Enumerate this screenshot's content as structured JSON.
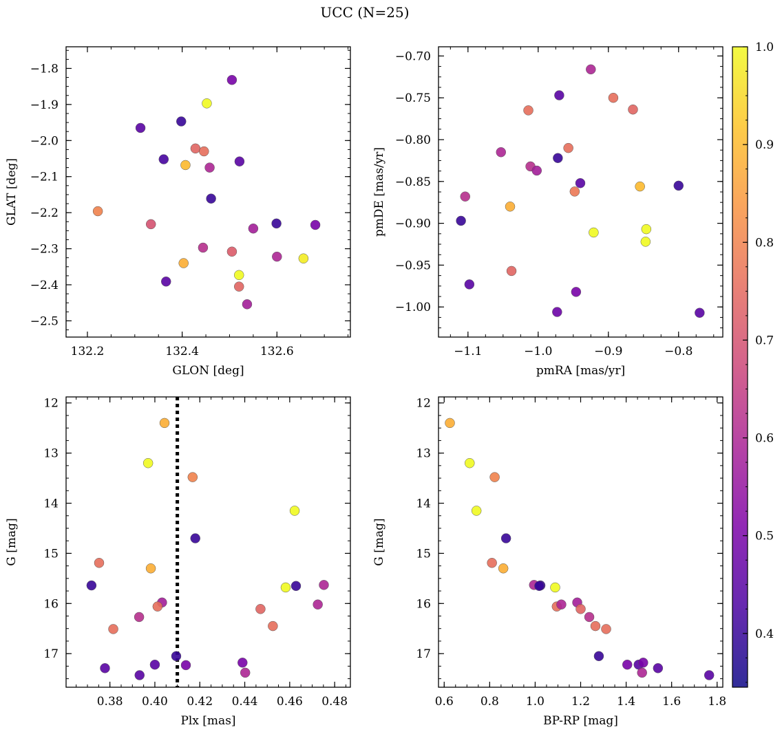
{
  "figure": {
    "title": "UCC (N=25)"
  },
  "colorbar": {
    "colormap": "plasma",
    "range": [
      0.345,
      1.0
    ],
    "ticks": [
      "0.4",
      "0.5",
      "0.6",
      "0.7",
      "0.8",
      "0.9",
      "1.0"
    ]
  },
  "chart_data": [
    {
      "type": "scatter",
      "xlabel": "GLON [deg]",
      "ylabel": "GLAT [deg]",
      "xlim": [
        132.155,
        132.755
      ],
      "ylim": [
        -2.545,
        -1.74
      ],
      "x_ticks": [
        "132.2",
        "132.4",
        "132.6"
      ],
      "y_ticks": [
        "−1.8",
        "−1.9",
        "−2.0",
        "−2.1",
        "−2.2",
        "−2.3",
        "−2.4",
        "−2.5"
      ],
      "points": [
        {
          "x": 132.505,
          "y": -1.832,
          "c": 0.5
        },
        {
          "x": 132.452,
          "y": -1.897,
          "c": 1.0
        },
        {
          "x": 132.312,
          "y": -1.965,
          "c": 0.45
        },
        {
          "x": 132.398,
          "y": -1.947,
          "c": 0.4
        },
        {
          "x": 132.361,
          "y": -2.052,
          "c": 0.42
        },
        {
          "x": 132.428,
          "y": -2.022,
          "c": 0.74
        },
        {
          "x": 132.446,
          "y": -2.03,
          "c": 0.76
        },
        {
          "x": 132.407,
          "y": -2.068,
          "c": 0.9
        },
        {
          "x": 132.458,
          "y": -2.075,
          "c": 0.6
        },
        {
          "x": 132.521,
          "y": -2.058,
          "c": 0.45
        },
        {
          "x": 132.461,
          "y": -2.161,
          "c": 0.4
        },
        {
          "x": 132.222,
          "y": -2.196,
          "c": 0.8
        },
        {
          "x": 132.334,
          "y": -2.232,
          "c": 0.7
        },
        {
          "x": 132.599,
          "y": -2.23,
          "c": 0.4
        },
        {
          "x": 132.55,
          "y": -2.244,
          "c": 0.58
        },
        {
          "x": 132.681,
          "y": -2.234,
          "c": 0.5
        },
        {
          "x": 132.444,
          "y": -2.297,
          "c": 0.62
        },
        {
          "x": 132.505,
          "y": -2.308,
          "c": 0.72
        },
        {
          "x": 132.6,
          "y": -2.322,
          "c": 0.6
        },
        {
          "x": 132.656,
          "y": -2.327,
          "c": 0.98
        },
        {
          "x": 132.403,
          "y": -2.34,
          "c": 0.88
        },
        {
          "x": 132.52,
          "y": -2.373,
          "c": 1.0
        },
        {
          "x": 132.52,
          "y": -2.405,
          "c": 0.74
        },
        {
          "x": 132.366,
          "y": -2.391,
          "c": 0.45
        },
        {
          "x": 132.537,
          "y": -2.454,
          "c": 0.58
        }
      ]
    },
    {
      "type": "scatter",
      "xlabel": "pmRA [mas/yr]",
      "ylabel": "pmDE [mas/yr]",
      "xlim": [
        -1.142,
        -0.737
      ],
      "ylim": [
        -1.036,
        -0.689
      ],
      "x_ticks": [
        "−1.1",
        "−1.0",
        "−0.9",
        "−0.8"
      ],
      "y_ticks": [
        "−0.70",
        "−0.75",
        "−0.80",
        "−0.85",
        "−0.90",
        "−0.95",
        "−1.00"
      ],
      "points": [
        {
          "x": -0.925,
          "y": -0.716,
          "c": 0.6
        },
        {
          "x": -0.97,
          "y": -0.747,
          "c": 0.45
        },
        {
          "x": -0.893,
          "y": -0.75,
          "c": 0.76
        },
        {
          "x": -1.014,
          "y": -0.765,
          "c": 0.76
        },
        {
          "x": -0.865,
          "y": -0.764,
          "c": 0.74
        },
        {
          "x": -0.957,
          "y": -0.81,
          "c": 0.76
        },
        {
          "x": -1.053,
          "y": -0.815,
          "c": 0.6
        },
        {
          "x": -0.972,
          "y": -0.822,
          "c": 0.4
        },
        {
          "x": -1.011,
          "y": -0.832,
          "c": 0.62
        },
        {
          "x": -1.002,
          "y": -0.837,
          "c": 0.58
        },
        {
          "x": -0.94,
          "y": -0.852,
          "c": 0.45
        },
        {
          "x": -0.855,
          "y": -0.856,
          "c": 0.9
        },
        {
          "x": -0.8,
          "y": -0.855,
          "c": 0.4
        },
        {
          "x": -0.948,
          "y": -0.862,
          "c": 0.78
        },
        {
          "x": -1.104,
          "y": -0.868,
          "c": 0.62
        },
        {
          "x": -1.04,
          "y": -0.88,
          "c": 0.88
        },
        {
          "x": -1.11,
          "y": -0.897,
          "c": 0.4
        },
        {
          "x": -0.846,
          "y": -0.907,
          "c": 1.0
        },
        {
          "x": -0.921,
          "y": -0.911,
          "c": 1.0
        },
        {
          "x": -0.847,
          "y": -0.922,
          "c": 1.0
        },
        {
          "x": -1.038,
          "y": -0.957,
          "c": 0.74
        },
        {
          "x": -1.098,
          "y": -0.973,
          "c": 0.45
        },
        {
          "x": -0.946,
          "y": -0.982,
          "c": 0.5
        },
        {
          "x": -0.973,
          "y": -1.006,
          "c": 0.48
        },
        {
          "x": -0.77,
          "y": -1.007,
          "c": 0.45
        }
      ]
    },
    {
      "type": "scatter",
      "xlabel": "Plx [mas]",
      "ylabel": "G [mag]",
      "xlim": [
        0.3605,
        0.487
      ],
      "ylim": [
        17.67,
        11.88
      ],
      "y_inverted": true,
      "x_ticks": [
        "0.38",
        "0.40",
        "0.42",
        "0.44",
        "0.46",
        "0.48"
      ],
      "y_ticks": [
        "12",
        "13",
        "14",
        "15",
        "16",
        "17"
      ],
      "vline": {
        "x": 0.41,
        "style": "dotted"
      },
      "points": [
        {
          "x": 0.4043,
          "y": 12.4,
          "c": 0.88
        },
        {
          "x": 0.397,
          "y": 13.2,
          "c": 1.0
        },
        {
          "x": 0.4168,
          "y": 13.48,
          "c": 0.8
        },
        {
          "x": 0.4622,
          "y": 14.15,
          "c": 1.0
        },
        {
          "x": 0.418,
          "y": 14.7,
          "c": 0.4
        },
        {
          "x": 0.3752,
          "y": 15.19,
          "c": 0.76
        },
        {
          "x": 0.3982,
          "y": 15.3,
          "c": 0.88
        },
        {
          "x": 0.3718,
          "y": 15.64,
          "c": 0.4
        },
        {
          "x": 0.4582,
          "y": 15.68,
          "c": 1.0
        },
        {
          "x": 0.4628,
          "y": 15.65,
          "c": 0.4
        },
        {
          "x": 0.4752,
          "y": 15.63,
          "c": 0.6
        },
        {
          "x": 0.4032,
          "y": 15.98,
          "c": 0.58
        },
        {
          "x": 0.4012,
          "y": 16.06,
          "c": 0.76
        },
        {
          "x": 0.4725,
          "y": 16.02,
          "c": 0.6
        },
        {
          "x": 0.447,
          "y": 16.11,
          "c": 0.74
        },
        {
          "x": 0.393,
          "y": 16.27,
          "c": 0.62
        },
        {
          "x": 0.4525,
          "y": 16.45,
          "c": 0.76
        },
        {
          "x": 0.3815,
          "y": 16.51,
          "c": 0.76
        },
        {
          "x": 0.4095,
          "y": 17.05,
          "c": 0.4
        },
        {
          "x": 0.4,
          "y": 17.22,
          "c": 0.45
        },
        {
          "x": 0.4138,
          "y": 17.23,
          "c": 0.5
        },
        {
          "x": 0.439,
          "y": 17.18,
          "c": 0.5
        },
        {
          "x": 0.3778,
          "y": 17.29,
          "c": 0.45
        },
        {
          "x": 0.4402,
          "y": 17.38,
          "c": 0.6
        },
        {
          "x": 0.3932,
          "y": 17.43,
          "c": 0.45
        }
      ]
    },
    {
      "type": "scatter",
      "xlabel": "BP-RP [mag]",
      "ylabel": "G [mag]",
      "xlim": [
        0.575,
        1.825
      ],
      "ylim": [
        17.67,
        11.88
      ],
      "y_inverted": true,
      "x_ticks": [
        "0.6",
        "0.8",
        "1.0",
        "1.2",
        "1.4",
        "1.6",
        "1.8"
      ],
      "y_ticks": [
        "12",
        "13",
        "14",
        "15",
        "16",
        "17"
      ],
      "points": [
        {
          "x": 0.625,
          "y": 12.4,
          "c": 0.88
        },
        {
          "x": 0.712,
          "y": 13.2,
          "c": 1.0
        },
        {
          "x": 0.822,
          "y": 13.48,
          "c": 0.8
        },
        {
          "x": 0.742,
          "y": 14.15,
          "c": 1.0
        },
        {
          "x": 0.872,
          "y": 14.7,
          "c": 0.4
        },
        {
          "x": 0.81,
          "y": 15.19,
          "c": 0.76
        },
        {
          "x": 0.86,
          "y": 15.3,
          "c": 0.88
        },
        {
          "x": 0.995,
          "y": 15.63,
          "c": 0.6
        },
        {
          "x": 1.023,
          "y": 15.64,
          "c": 0.4
        },
        {
          "x": 1.088,
          "y": 15.68,
          "c": 1.0
        },
        {
          "x": 1.018,
          "y": 15.65,
          "c": 0.4
        },
        {
          "x": 1.095,
          "y": 16.06,
          "c": 0.76
        },
        {
          "x": 1.115,
          "y": 16.02,
          "c": 0.6
        },
        {
          "x": 1.185,
          "y": 15.98,
          "c": 0.58
        },
        {
          "x": 1.2,
          "y": 16.11,
          "c": 0.74
        },
        {
          "x": 1.238,
          "y": 16.27,
          "c": 0.62
        },
        {
          "x": 1.265,
          "y": 16.45,
          "c": 0.76
        },
        {
          "x": 1.312,
          "y": 16.51,
          "c": 0.76
        },
        {
          "x": 1.28,
          "y": 17.05,
          "c": 0.4
        },
        {
          "x": 1.405,
          "y": 17.22,
          "c": 0.5
        },
        {
          "x": 1.455,
          "y": 17.22,
          "c": 0.45
        },
        {
          "x": 1.475,
          "y": 17.18,
          "c": 0.5
        },
        {
          "x": 1.47,
          "y": 17.38,
          "c": 0.6
        },
        {
          "x": 1.54,
          "y": 17.29,
          "c": 0.45
        },
        {
          "x": 1.765,
          "y": 17.43,
          "c": 0.45
        }
      ]
    }
  ]
}
